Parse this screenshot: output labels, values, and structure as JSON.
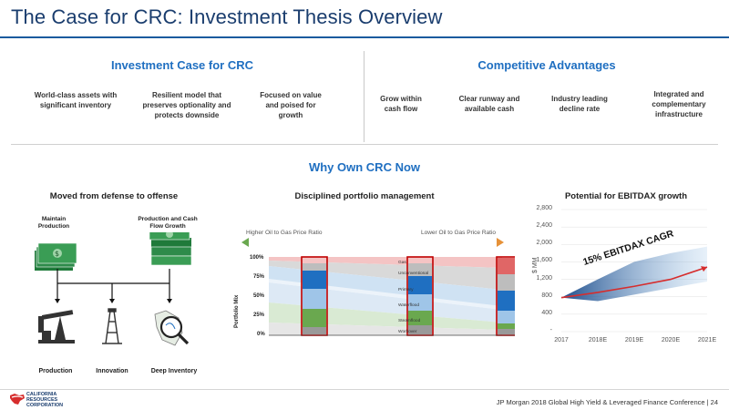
{
  "slide": {
    "title": "The Case for CRC: Investment Thesis Overview",
    "footer": "JP Morgan 2018 Global High Yield & Leveraged Finance Conference  |  24",
    "logo_lines": [
      "CALIFORNIA",
      "RESOURCES",
      "CORPORATION"
    ]
  },
  "investment_case": {
    "heading": "Investment Case for CRC",
    "items": [
      "World-class assets with significant inventory",
      "Resilient model that preserves optionality and protects downside",
      "Focused on value and poised for growth"
    ]
  },
  "competitive_advantages": {
    "heading": "Competitive Advantages",
    "items": [
      "Grow within cash flow",
      "Clear runway and available cash",
      "Industry leading decline rate",
      "Integrated and complementary infrastructure"
    ]
  },
  "why_own": {
    "heading": "Why Own CRC Now"
  },
  "defense_to_offense": {
    "heading": "Moved from defense to offense",
    "top_left": "Maintain Production",
    "top_right": "Production and Cash Flow Growth",
    "bottom": [
      "Production",
      "Innovation",
      "Deep Inventory"
    ]
  },
  "portfolio": {
    "heading": "Disciplined portfolio management",
    "left_arrow_label": "Higher Oil to Gas Price Ratio",
    "right_arrow_label": "Lower Oil to Gas Price Ratio",
    "y_label": "Portfolio Mix",
    "y_ticks": [
      "100%",
      "75%",
      "50%",
      "25%",
      "0%"
    ],
    "bands": [
      "Gas",
      "Unconventional",
      "Primary",
      "Waterflood",
      "Steamflood",
      "Workover"
    ],
    "colors": {
      "gas": "#f4c4c4",
      "unconventional": "#c8c8c8",
      "primary": "#6fa8dc",
      "waterflood": "#c6dbef",
      "steamflood": "#b6d7a8",
      "workover": "#d9d9d9",
      "arrow_start": "#6aa84f",
      "arrow_end": "#e69138"
    }
  },
  "ebitdax": {
    "heading": "Potential for EBITDAX growth",
    "y_label": "$ MM",
    "cagr_label": "15% EBITDAX CAGR",
    "chart_data": {
      "type": "area",
      "categories": [
        "2017",
        "2018E",
        "2019E",
        "2020E",
        "2021E"
      ],
      "y_ticks": [
        "2,800",
        "2,400",
        "2,000",
        "1,600",
        "1,200",
        "800",
        "400",
        "-"
      ],
      "ylim": [
        0,
        2800
      ],
      "series": [
        {
          "values": [
            780,
            900,
            1040,
            1200,
            1480
          ]
        },
        {
          "values": [
            780,
            1200,
            1600,
            1800,
            1950
          ]
        },
        {
          "values": [
            780,
            700,
            850,
            1000,
            1150
          ]
        }
      ]
    },
    "colors": {
      "band": "#2e75b6",
      "line": "#d62d2d"
    }
  }
}
